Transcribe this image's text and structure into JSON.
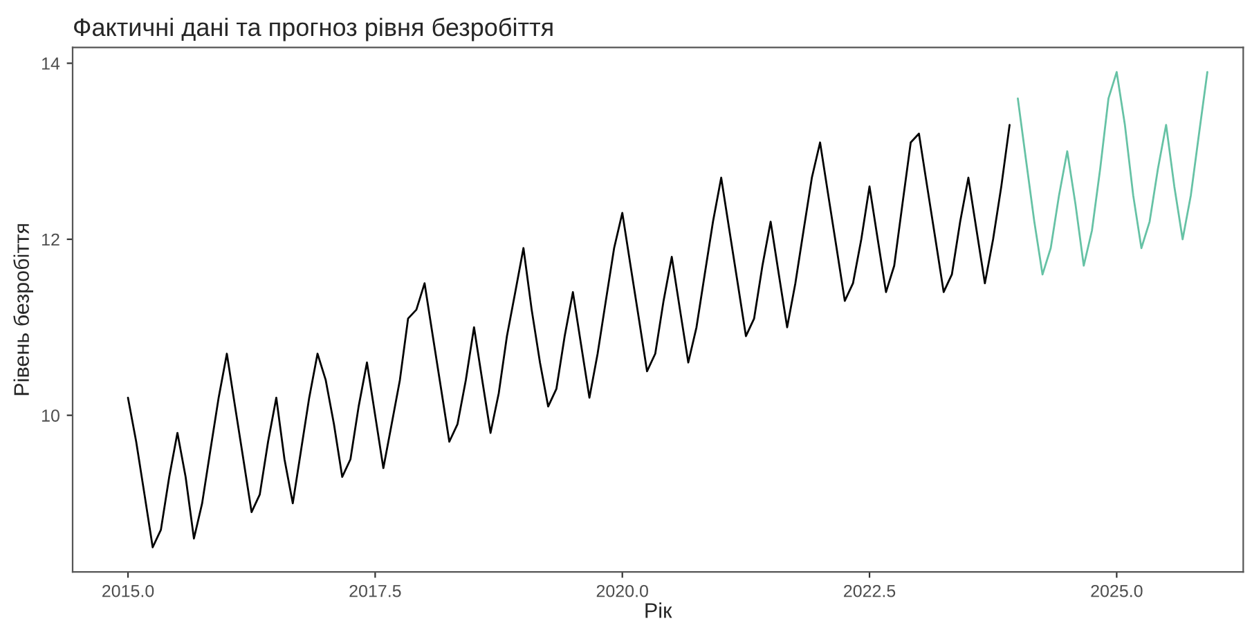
{
  "chart_data": {
    "type": "line",
    "title": "Фактичні дані та прогноз рівня безробіття",
    "xlabel": "Рік",
    "ylabel": "Рівень безробіття",
    "series": [
      {
        "color": "#000000",
        "x": [
          2015,
          2015.083,
          2015.167,
          2015.25,
          2015.333,
          2015.417,
          2015.5,
          2015.583,
          2015.667,
          2015.75,
          2015.833,
          2015.917,
          2016,
          2016.083,
          2016.167,
          2016.25,
          2016.333,
          2016.417,
          2016.5,
          2016.583,
          2016.667,
          2016.75,
          2016.833,
          2016.917,
          2017,
          2017.083,
          2017.167,
          2017.25,
          2017.333,
          2017.417,
          2017.5,
          2017.583,
          2017.667,
          2017.75,
          2017.833,
          2017.917,
          2018,
          2018.083,
          2018.167,
          2018.25,
          2018.333,
          2018.417,
          2018.5,
          2018.583,
          2018.667,
          2018.75,
          2018.833,
          2018.917,
          2019,
          2019.083,
          2019.167,
          2019.25,
          2019.333,
          2019.417,
          2019.5,
          2019.583,
          2019.667,
          2019.75,
          2019.833,
          2019.917,
          2020,
          2020.083,
          2020.167,
          2020.25,
          2020.333,
          2020.417,
          2020.5,
          2020.583,
          2020.667,
          2020.75,
          2020.833,
          2020.917,
          2021,
          2021.083,
          2021.167,
          2021.25,
          2021.333,
          2021.417,
          2021.5,
          2021.583,
          2021.667,
          2021.75,
          2021.833,
          2021.917,
          2022,
          2022.083,
          2022.167,
          2022.25,
          2022.333,
          2022.417,
          2022.5,
          2022.583,
          2022.667,
          2022.75,
          2022.833,
          2022.917,
          2023,
          2023.083,
          2023.167,
          2023.25,
          2023.333,
          2023.417,
          2023.5,
          2023.583,
          2023.667,
          2023.75,
          2023.833,
          2023.917
        ],
        "values": [
          10.2,
          9.7,
          9.1,
          8.5,
          8.7,
          9.3,
          9.8,
          9.3,
          8.6,
          9.0,
          9.6,
          10.2,
          10.7,
          10.1,
          9.5,
          8.9,
          9.1,
          9.7,
          10.2,
          9.5,
          9.0,
          9.6,
          10.2,
          10.7,
          10.4,
          9.9,
          9.3,
          9.5,
          10.1,
          10.6,
          10.0,
          9.4,
          9.9,
          10.4,
          11.1,
          11.2,
          11.5,
          10.9,
          10.3,
          9.7,
          9.9,
          10.4,
          11.0,
          10.4,
          9.8,
          10.25,
          10.9,
          11.4,
          11.9,
          11.2,
          10.6,
          10.1,
          10.3,
          10.9,
          11.4,
          10.8,
          10.2,
          10.7,
          11.3,
          11.9,
          12.3,
          11.7,
          11.1,
          10.5,
          10.7,
          11.3,
          11.8,
          11.2,
          10.6,
          11.0,
          11.6,
          12.2,
          12.7,
          12.1,
          11.5,
          10.9,
          11.1,
          11.7,
          12.2,
          11.6,
          11.0,
          11.5,
          12.1,
          12.7,
          13.1,
          12.5,
          11.9,
          11.3,
          11.5,
          12.0,
          12.6,
          12.0,
          11.4,
          11.7,
          12.4,
          13.1,
          13.2,
          12.6,
          12.0,
          11.4,
          11.6,
          12.2,
          12.7,
          12.1,
          11.5,
          12.0,
          12.6,
          13.3
        ]
      },
      {
        "color": "#66c2a5",
        "x": [
          2024,
          2024.083,
          2024.167,
          2024.25,
          2024.333,
          2024.417,
          2024.5,
          2024.583,
          2024.667,
          2024.75,
          2024.833,
          2024.917,
          2025,
          2025.083,
          2025.167,
          2025.25,
          2025.333,
          2025.417,
          2025.5,
          2025.583,
          2025.667,
          2025.75,
          2025.833,
          2025.917
        ],
        "values": [
          13.6,
          12.9,
          12.2,
          11.6,
          11.9,
          12.5,
          13.0,
          12.4,
          11.7,
          12.1,
          12.8,
          13.6,
          13.9,
          13.3,
          12.5,
          11.9,
          12.2,
          12.8,
          13.3,
          12.6,
          12.0,
          12.5,
          13.2,
          13.9
        ]
      }
    ],
    "xlim": [
      2014.44,
      2026.28
    ],
    "xticks": [
      {
        "value": 2015,
        "label": "2015.0"
      },
      {
        "value": 2017.5,
        "label": "2017.5"
      },
      {
        "value": 2020,
        "label": "2020.0"
      },
      {
        "value": 2022.5,
        "label": "2022.5"
      },
      {
        "value": 2025,
        "label": "2025.0"
      }
    ],
    "ylim": [
      8.22,
      14.18
    ],
    "yticks": [
      10,
      12,
      14
    ],
    "grid": false,
    "line_style": "solid",
    "marker": "none"
  }
}
